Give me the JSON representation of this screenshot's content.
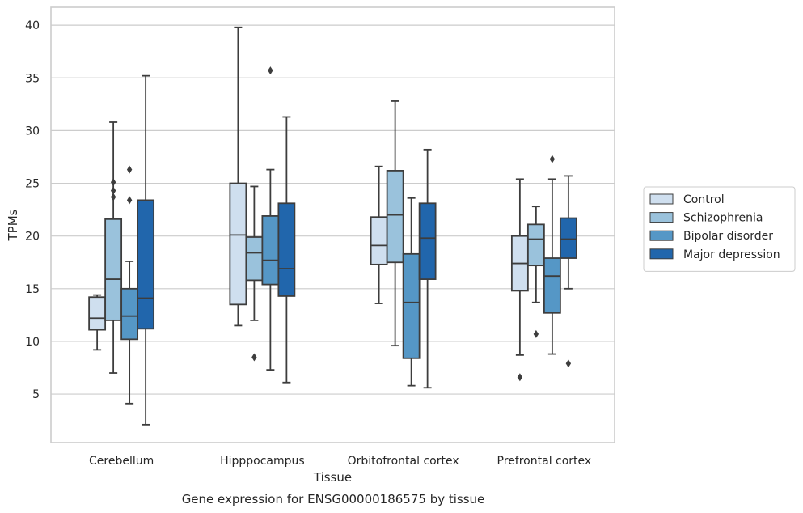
{
  "chart_data": {
    "type": "box",
    "title": "",
    "caption": "Gene expression for ENSG00000186575 by tissue",
    "xlabel": "Tissue",
    "ylabel": "TPMs",
    "ylim": [
      0.4,
      41.7
    ],
    "yticks": [
      5,
      10,
      15,
      20,
      25,
      30,
      35,
      40
    ],
    "grid": "horizontal",
    "legend_position": "right",
    "categories": [
      "Cerebellum",
      "Hipppocampus",
      "Orbitofrontal cortex",
      "Prefrontal cortex"
    ],
    "series": [
      {
        "name": "Control",
        "color": "#cfdfef",
        "boxes": [
          {
            "whislo": 9.2,
            "q1": 11.1,
            "med": 12.2,
            "q3": 14.2,
            "whishi": 14.4,
            "fliers": []
          },
          {
            "whislo": 11.5,
            "q1": 13.5,
            "med": 20.1,
            "q3": 25.0,
            "whishi": 39.8,
            "fliers": []
          },
          {
            "whislo": 13.6,
            "q1": 17.3,
            "med": 19.1,
            "q3": 21.8,
            "whishi": 26.6,
            "fliers": []
          },
          {
            "whislo": 8.7,
            "q1": 14.8,
            "med": 17.4,
            "q3": 20.0,
            "whishi": 25.4,
            "fliers": [
              6.6
            ]
          }
        ]
      },
      {
        "name": "Schizophrenia",
        "color": "#9ac2dc",
        "boxes": [
          {
            "whislo": 7.0,
            "q1": 12.0,
            "med": 15.9,
            "q3": 21.6,
            "whishi": 30.8,
            "fliers": [
              23.7,
              24.3,
              25.1
            ]
          },
          {
            "whislo": 12.0,
            "q1": 15.8,
            "med": 18.4,
            "q3": 19.9,
            "whishi": 24.7,
            "fliers": [
              8.5
            ]
          },
          {
            "whislo": 9.6,
            "q1": 17.5,
            "med": 22.0,
            "q3": 26.2,
            "whishi": 32.8,
            "fliers": []
          },
          {
            "whislo": 13.7,
            "q1": 17.2,
            "med": 19.7,
            "q3": 21.1,
            "whishi": 22.8,
            "fliers": [
              10.7
            ]
          }
        ]
      },
      {
        "name": "Bipolar disorder",
        "color": "#5597c6",
        "boxes": [
          {
            "whislo": 4.1,
            "q1": 10.2,
            "med": 12.4,
            "q3": 15.0,
            "whishi": 17.6,
            "fliers": [
              23.4,
              26.3
            ]
          },
          {
            "whislo": 7.3,
            "q1": 15.4,
            "med": 17.7,
            "q3": 21.9,
            "whishi": 26.3,
            "fliers": [
              35.7
            ]
          },
          {
            "whislo": 5.8,
            "q1": 8.4,
            "med": 13.7,
            "q3": 18.3,
            "whishi": 23.6,
            "fliers": []
          },
          {
            "whislo": 8.8,
            "q1": 12.7,
            "med": 16.2,
            "q3": 17.9,
            "whishi": 25.4,
            "fliers": [
              27.3
            ]
          }
        ]
      },
      {
        "name": "Major depression",
        "color": "#2166ac",
        "boxes": [
          {
            "whislo": 2.1,
            "q1": 11.2,
            "med": 14.1,
            "q3": 23.4,
            "whishi": 35.2,
            "fliers": []
          },
          {
            "whislo": 6.1,
            "q1": 14.3,
            "med": 16.9,
            "q3": 23.1,
            "whishi": 31.3,
            "fliers": []
          },
          {
            "whislo": 5.6,
            "q1": 15.9,
            "med": 19.8,
            "q3": 23.1,
            "whishi": 28.2,
            "fliers": []
          },
          {
            "whislo": 15.0,
            "q1": 17.9,
            "med": 19.7,
            "q3": 21.7,
            "whishi": 25.7,
            "fliers": [
              7.9
            ]
          }
        ]
      }
    ]
  }
}
